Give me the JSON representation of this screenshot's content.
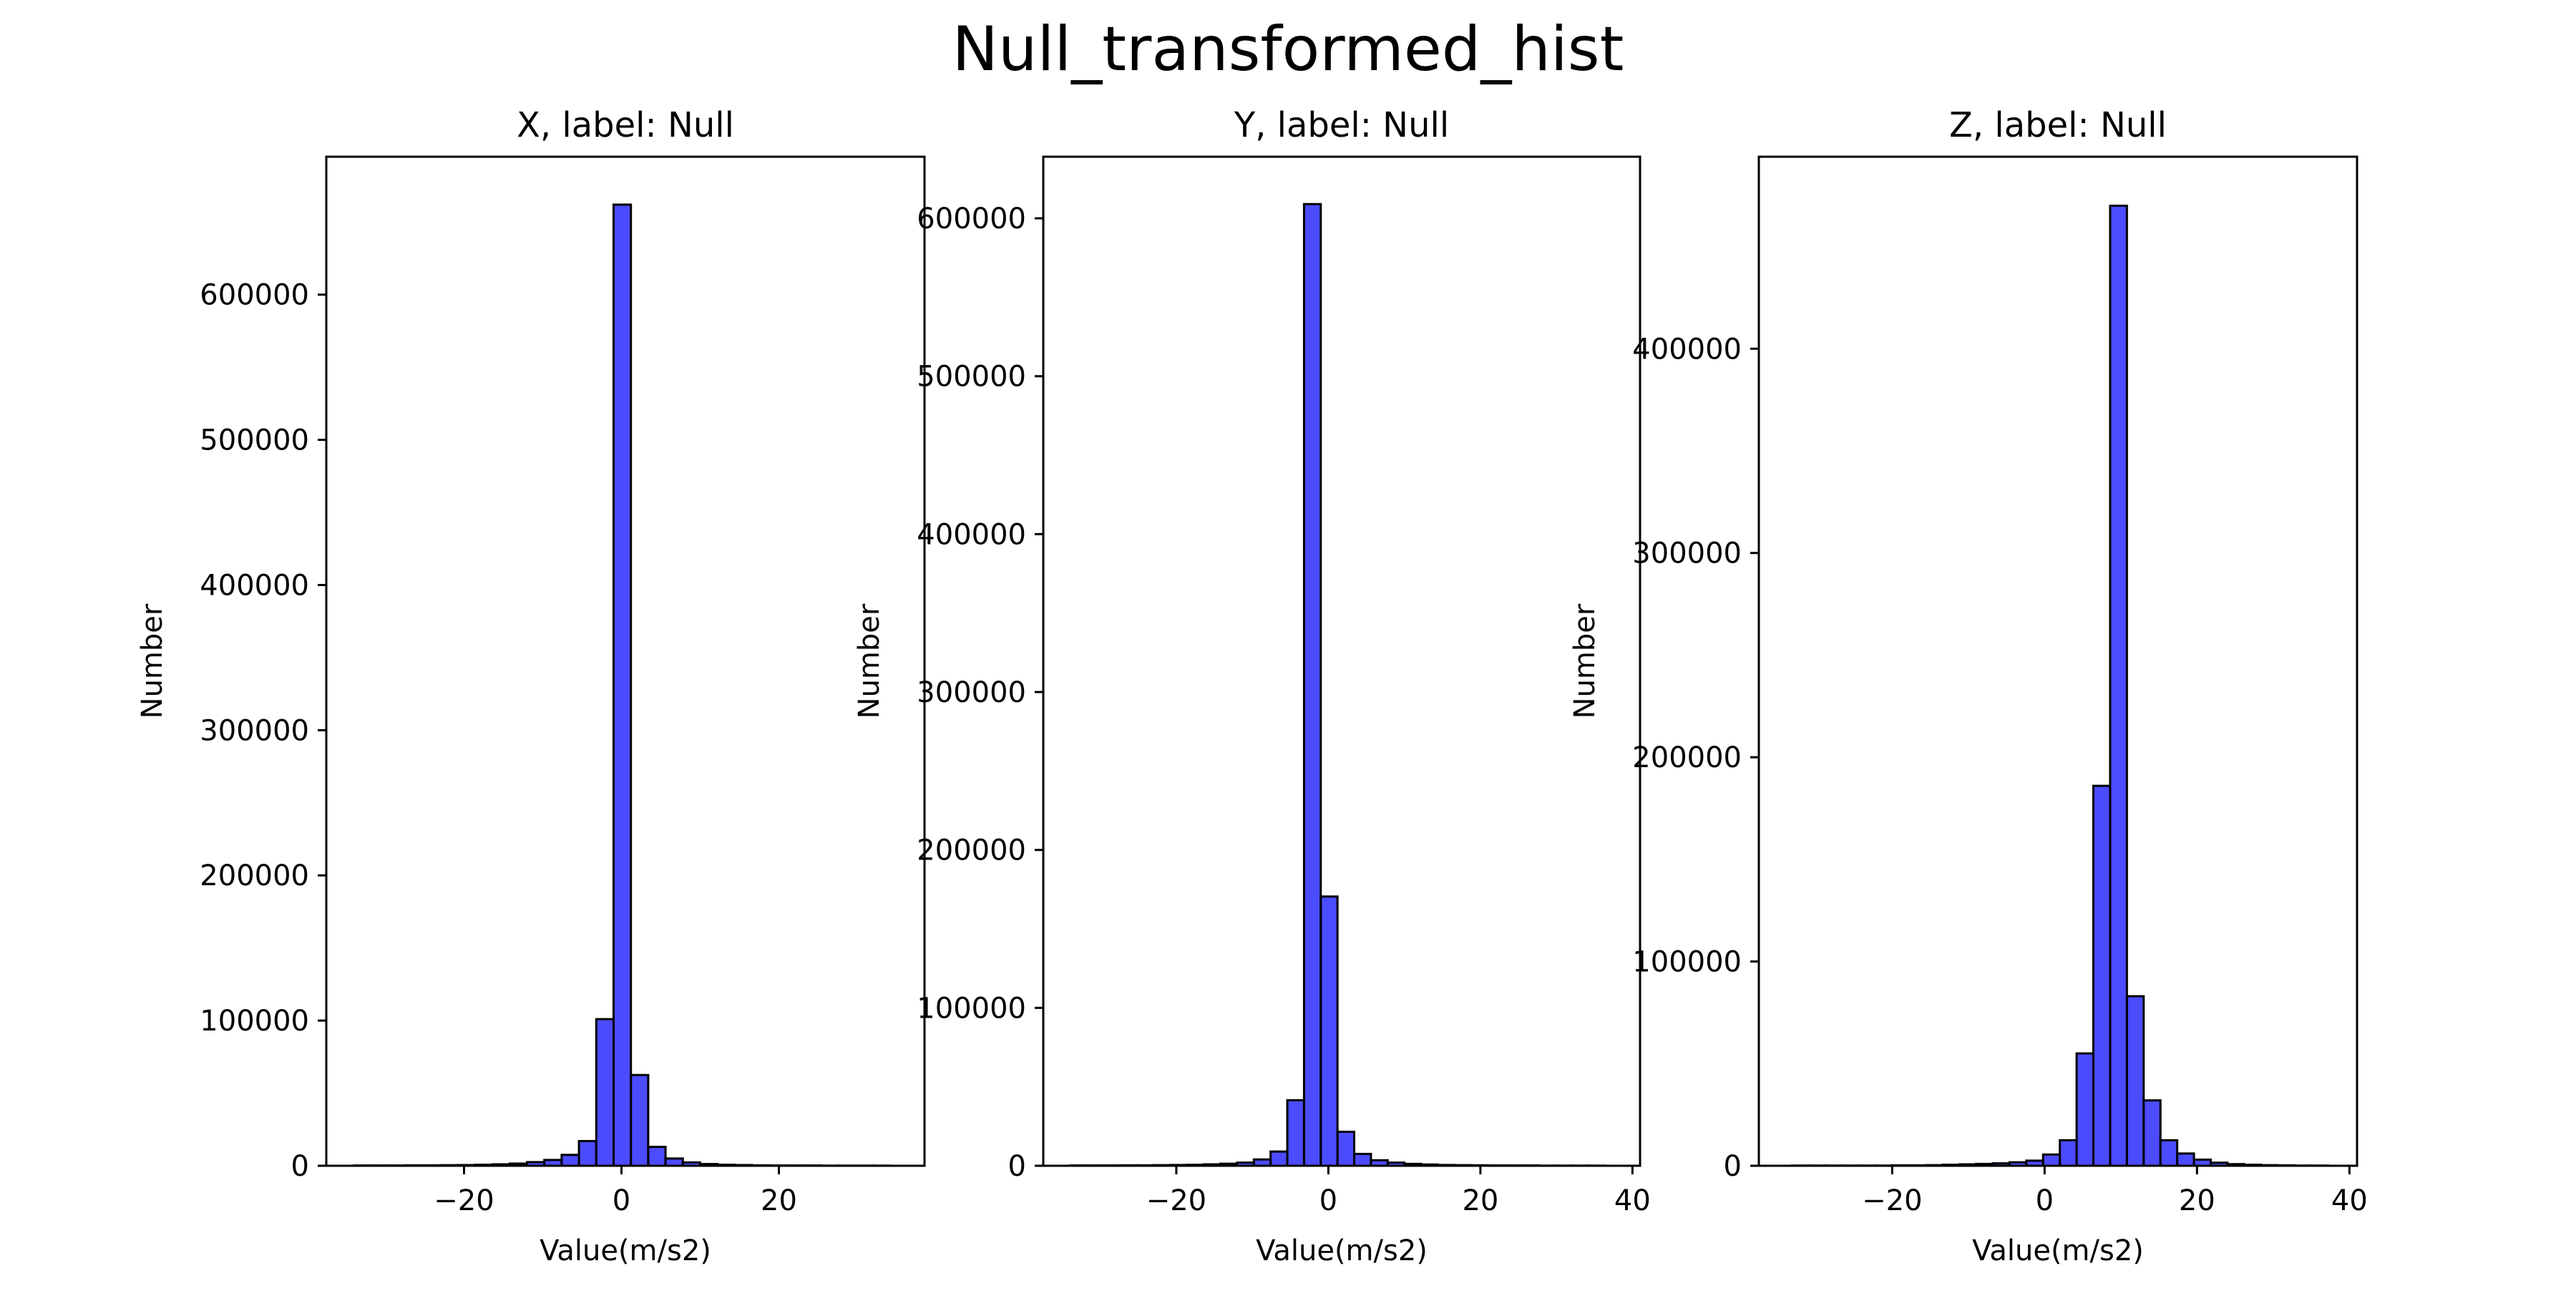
{
  "figure": {
    "title": "Null_transformed_hist"
  },
  "chart_data": [
    {
      "type": "bar",
      "title": "X, label: Null",
      "xlabel": "Value(m/s2)",
      "ylabel": "Number",
      "xlim": [
        -37.5,
        38.5
      ],
      "ylim": [
        0,
        695000
      ],
      "xticks": [
        -20,
        0,
        20
      ],
      "xtick_labels": [
        "−20",
        "0",
        "20"
      ],
      "yticks": [
        0,
        100000,
        200000,
        300000,
        400000,
        500000,
        600000
      ],
      "ytick_labels": [
        "0",
        "100000",
        "200000",
        "300000",
        "400000",
        "500000",
        "600000"
      ],
      "bin_edges": [
        -34.0,
        -31.8,
        -29.6,
        -27.4,
        -25.2,
        -23.0,
        -20.8,
        -18.6,
        -16.4,
        -14.2,
        -12.0,
        -9.8,
        -7.6,
        -5.4,
        -3.2,
        -1.0,
        1.2,
        3.4,
        5.6,
        7.8,
        10.0,
        12.2,
        14.4,
        16.6,
        18.8,
        21.0,
        23.2,
        25.4,
        27.6,
        29.8,
        32.0,
        34.2
      ],
      "values": [
        200,
        200,
        200,
        300,
        300,
        400,
        500,
        700,
        1000,
        1500,
        2500,
        4000,
        7500,
        17000,
        101000,
        662000,
        62500,
        13000,
        5000,
        2300,
        1200,
        700,
        500,
        300,
        200,
        200,
        200,
        100,
        100,
        100,
        100
      ],
      "bar_color": "#0000ff",
      "bar_alpha": 0.7,
      "edge_color": "#000000",
      "grid": false
    },
    {
      "type": "bar",
      "title": "Y, label: Null",
      "xlabel": "Value(m/s2)",
      "ylabel": "Number",
      "xlim": [
        -37.5,
        41.0
      ],
      "ylim": [
        0,
        639000
      ],
      "xticks": [
        -20,
        0,
        20,
        40
      ],
      "xtick_labels": [
        "−20",
        "0",
        "20",
        "40"
      ],
      "yticks": [
        0,
        100000,
        200000,
        300000,
        400000,
        500000,
        600000
      ],
      "ytick_labels": [
        "0",
        "100000",
        "200000",
        "300000",
        "400000",
        "500000",
        "600000"
      ],
      "bin_edges": [
        -34.0,
        -31.8,
        -29.6,
        -27.4,
        -25.2,
        -23.0,
        -20.8,
        -18.6,
        -16.4,
        -14.2,
        -12.0,
        -9.8,
        -7.6,
        -5.4,
        -3.2,
        -1.0,
        1.2,
        3.4,
        5.6,
        7.8,
        10.0,
        12.2,
        14.4,
        16.6,
        18.8,
        21.0,
        23.2,
        25.4,
        27.6,
        29.8,
        32.0,
        34.2,
        36.4
      ],
      "values": [
        200,
        200,
        200,
        300,
        300,
        400,
        500,
        600,
        900,
        1300,
        2000,
        4000,
        9000,
        41500,
        609000,
        170500,
        21500,
        7500,
        3500,
        2000,
        1200,
        800,
        500,
        400,
        300,
        200,
        200,
        200,
        100,
        100,
        100,
        100
      ],
      "bar_color": "#0000ff",
      "bar_alpha": 0.7,
      "edge_color": "#000000",
      "grid": false
    },
    {
      "type": "bar",
      "title": "Z, label: Null",
      "xlabel": "Value(m/s2)",
      "ylabel": "Number",
      "xlim": [
        -37.5,
        41.0
      ],
      "ylim": [
        0,
        494000
      ],
      "xticks": [
        -20,
        0,
        20,
        40
      ],
      "xtick_labels": [
        "−20",
        "0",
        "20",
        "40"
      ],
      "yticks": [
        0,
        100000,
        200000,
        300000,
        400000
      ],
      "ytick_labels": [
        "0",
        "100000",
        "200000",
        "300000",
        "400000"
      ],
      "bin_edges": [
        -33.2,
        -31.0,
        -28.8,
        -26.6,
        -24.4,
        -22.2,
        -20.0,
        -17.8,
        -15.6,
        -13.4,
        -11.2,
        -9.0,
        -6.8,
        -4.6,
        -2.4,
        -0.2,
        2.0,
        4.2,
        6.4,
        8.6,
        10.8,
        13.0,
        15.2,
        17.4,
        19.6,
        21.8,
        24.0,
        26.2,
        28.4,
        30.6,
        32.8,
        35.0,
        37.2
      ],
      "values": [
        100,
        100,
        100,
        100,
        100,
        100,
        200,
        200,
        300,
        500,
        700,
        900,
        1200,
        1700,
        2500,
        5500,
        12500,
        55000,
        186000,
        470000,
        83000,
        32000,
        12500,
        6000,
        3000,
        1500,
        800,
        500,
        300,
        200,
        100,
        100
      ],
      "bar_color": "#0000ff",
      "bar_alpha": 0.7,
      "edge_color": "#000000",
      "grid": false
    }
  ]
}
